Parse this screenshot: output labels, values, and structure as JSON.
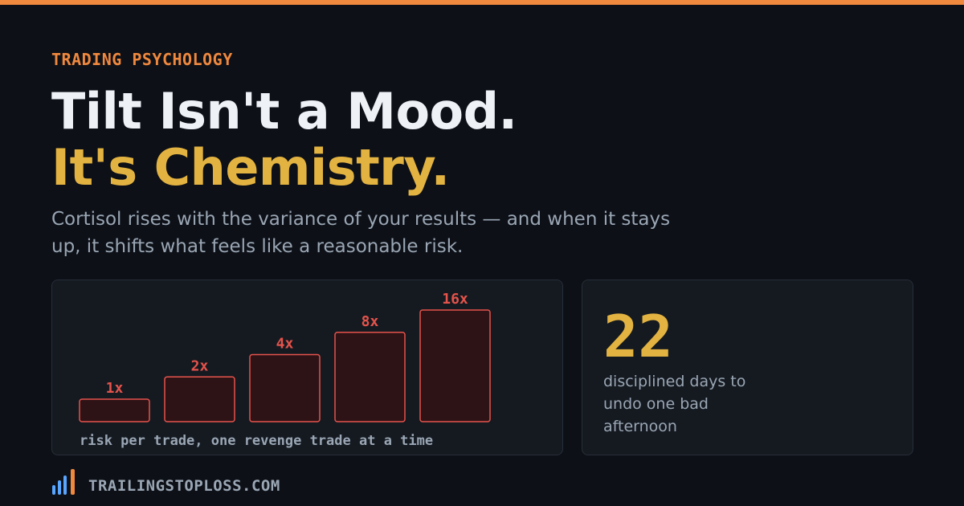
{
  "eyebrow": "TRADING PSYCHOLOGY",
  "headline": {
    "line1": "Tilt Isn't a Mood.",
    "line2": "It's Chemistry."
  },
  "subtitle": "Cortisol rises with the variance of your results — and when it stays up, it shifts what feels like a reasonable risk.",
  "colors": {
    "accent_orange": "#f0883e",
    "accent_gold": "#e3b341",
    "bar_stroke": "#e5534b",
    "bar_fill": "#2d1316",
    "background": "#0d1017",
    "card": "#151a21"
  },
  "chart_data": {
    "type": "bar",
    "categories": [
      "1x",
      "2x",
      "4x",
      "8x",
      "16x"
    ],
    "values": [
      1,
      2,
      4,
      8,
      16
    ],
    "caption": "risk per trade, one revenge trade at a time"
  },
  "stat": {
    "number": "22",
    "label": "disciplined days to undo one bad afternoon"
  },
  "footer": {
    "logo_icon": "bar-chart-logo-icon",
    "site": "TRAILINGSTOPLOSS.COM"
  }
}
